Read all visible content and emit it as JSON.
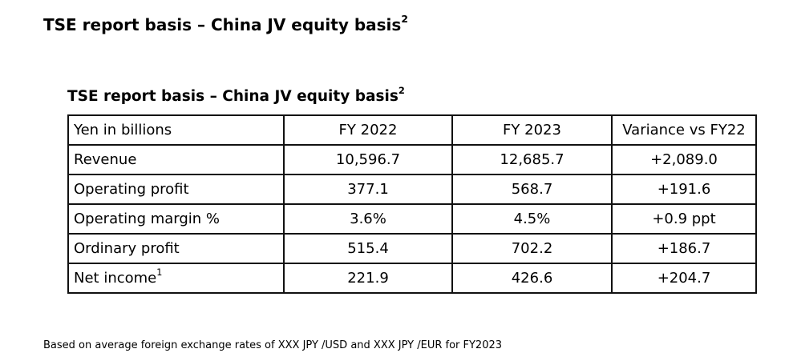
{
  "heading": {
    "text": "TSE report basis – China JV equity basis",
    "sup": "2"
  },
  "caption": {
    "text": "TSE report basis – China JV equity basis",
    "sup": "2"
  },
  "table": {
    "columns": [
      "Yen in billions",
      "FY 2022",
      "FY 2023",
      "Variance vs FY22"
    ],
    "rows": [
      {
        "label": "Revenue",
        "sup": "",
        "fy2022": "10,596.7",
        "fy2023": "12,685.7",
        "variance": "+2,089.0"
      },
      {
        "label": "Operating profit",
        "sup": "",
        "fy2022": "377.1",
        "fy2023": "568.7",
        "variance": "+191.6"
      },
      {
        "label": "Operating margin %",
        "sup": "",
        "fy2022": "3.6%",
        "fy2023": "4.5%",
        "variance": "+0.9 ppt"
      },
      {
        "label": "Ordinary profit",
        "sup": "",
        "fy2022": "515.4",
        "fy2023": "702.2",
        "variance": "+186.7"
      },
      {
        "label": "Net income",
        "sup": "1",
        "fy2022": "221.9",
        "fy2023": "426.6",
        "variance": "+204.7"
      }
    ]
  },
  "footnote": "Based on average foreign exchange rates of XXX JPY /USD and XXX JPY /EUR for FY2023"
}
